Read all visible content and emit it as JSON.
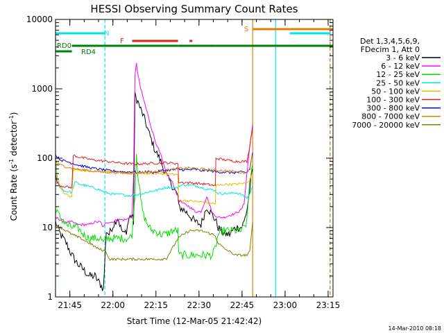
{
  "chart_data": {
    "type": "line",
    "title": "HESSI Observing Summary Count Rates",
    "xlabel": "Start Time (12-Mar-05 21:42:42)",
    "ylabel_parts": [
      "Count Rate (s",
      "-1",
      " detector",
      "-1",
      ")"
    ],
    "yscale": "log",
    "ylim": [
      1,
      10000
    ],
    "xlim_min": [
      -2.7,
      94
    ],
    "x_ticks": [
      {
        "v": 2.3,
        "label": "21:45"
      },
      {
        "v": 17.3,
        "label": "22:00"
      },
      {
        "v": 32.3,
        "label": "22:15"
      },
      {
        "v": 47.3,
        "label": "22:30"
      },
      {
        "v": 62.3,
        "label": "22:45"
      },
      {
        "v": 77.3,
        "label": "23:00"
      },
      {
        "v": 92.3,
        "label": "23:15"
      }
    ],
    "y_ticks": [
      {
        "v": 1,
        "label": "1"
      },
      {
        "v": 10,
        "label": "10"
      },
      {
        "v": 100,
        "label": "100"
      },
      {
        "v": 1000,
        "label": "1000"
      },
      {
        "v": 10000,
        "label": "10000"
      }
    ],
    "timestamp": "14-Mar-2010 08:18",
    "legend_header": [
      "Det 1,3,4,5,6,9,",
      "FDecim 1, Att 0"
    ],
    "flags": {
      "N": {
        "label": "N",
        "color": "#00e5e5",
        "segments": [
          [
            -2.7,
            14.5
          ],
          [
            79,
            93
          ]
        ]
      },
      "F": {
        "label": "F",
        "color": "#e02020",
        "segments": [
          [
            24,
            40
          ],
          [
            44,
            45
          ]
        ]
      },
      "S": {
        "label": "S",
        "color": "#e08000",
        "segments": [
          [
            66,
            94
          ]
        ]
      },
      "RD0": {
        "label": "RD0",
        "color": "#008000",
        "segments": [
          [
            3,
            40
          ],
          [
            40,
            53
          ],
          [
            53,
            94
          ]
        ]
      },
      "RD4": {
        "label": "RD4",
        "color": "#008000",
        "segments": [
          [
            -2.7,
            3
          ]
        ]
      }
    },
    "vlines": [
      {
        "x": -2.7,
        "color": "#00e5e5",
        "style": "solid"
      },
      {
        "x": 14.5,
        "color": "#00e5e5",
        "style": "dashed"
      },
      {
        "x": 66,
        "color": "#e08000",
        "style": "solid"
      },
      {
        "x": 74,
        "color": "#00e5e5",
        "style": "solid"
      },
      {
        "x": 93,
        "color": "#00e5e5",
        "style": "dashed"
      },
      {
        "x": 93,
        "color": "#e08000",
        "style": "dashed"
      }
    ],
    "series": [
      {
        "name": "3 - 6 keV",
        "color": "#000000",
        "x": [
          -2.7,
          -1,
          1,
          3,
          5,
          7,
          9,
          11,
          13,
          14,
          15,
          16,
          17,
          18,
          19,
          20,
          21,
          22,
          23,
          24,
          24.5,
          25,
          26,
          27,
          28,
          29,
          30,
          31,
          32,
          33,
          34,
          35,
          36,
          38,
          40,
          40.2,
          42,
          44,
          46,
          48,
          50,
          52,
          53,
          54,
          56,
          58,
          60,
          62,
          63,
          64,
          65,
          66
        ],
        "y": [
          12,
          8,
          6,
          4,
          3,
          2.5,
          2,
          2,
          1.5,
          1.3,
          9,
          8,
          10,
          12,
          14,
          10,
          8,
          9,
          14,
          15,
          12,
          800,
          650,
          500,
          400,
          300,
          220,
          170,
          130,
          110,
          90,
          70,
          55,
          40,
          28,
          20,
          18,
          15,
          12,
          11,
          20,
          15,
          13,
          10,
          8,
          8,
          10,
          10,
          12,
          18,
          35,
          70
        ]
      },
      {
        "name": "6 - 12 keV",
        "color": "#ff00ff",
        "x": [
          -2.7,
          -1,
          1,
          3,
          5,
          7,
          9,
          11,
          13,
          14,
          15,
          17,
          19,
          21,
          22,
          23,
          24,
          24.5,
          25,
          25.5,
          26,
          27,
          28,
          29,
          30,
          31,
          32,
          33,
          34,
          35,
          36,
          38,
          40,
          40.2,
          42,
          44,
          46,
          48,
          50,
          52,
          53,
          54,
          56,
          58,
          60,
          62,
          63,
          64,
          65,
          66
        ],
        "y": [
          14,
          13,
          12,
          12,
          11,
          11,
          11,
          12,
          12,
          10,
          12,
          12,
          13,
          13,
          13,
          14,
          15,
          60,
          1500,
          2400,
          1600,
          1000,
          700,
          500,
          350,
          250,
          180,
          140,
          110,
          80,
          60,
          45,
          28,
          25,
          22,
          20,
          17,
          17,
          28,
          16,
          15,
          14,
          14,
          15,
          16,
          18,
          22,
          60,
          150,
          300
        ]
      },
      {
        "name": "12 - 25 keV",
        "color": "#00e000",
        "x": [
          -2.7,
          -1,
          1,
          3,
          5,
          7,
          9,
          11,
          13,
          14,
          15,
          17,
          19,
          21,
          22,
          23,
          24,
          24.5,
          25,
          25.5,
          26,
          27,
          28,
          29,
          30,
          31,
          32,
          34,
          36,
          38,
          40,
          40.2,
          42,
          44,
          46,
          48,
          50,
          52,
          53,
          54,
          56,
          58,
          60,
          62,
          63,
          64,
          65,
          66
        ],
        "y": [
          18,
          14,
          11,
          10,
          10,
          8,
          7,
          7,
          7,
          6,
          7,
          7,
          7,
          7,
          7,
          7,
          8,
          15,
          30,
          120,
          60,
          25,
          15,
          12,
          10,
          9,
          9,
          8,
          8,
          9,
          9,
          4,
          4,
          4,
          4,
          4,
          4,
          4,
          5,
          8,
          9,
          9,
          9,
          9,
          10,
          12,
          50,
          80
        ]
      },
      {
        "name": "25 - 50 keV",
        "color": "#00e5e5",
        "x": [
          -2.7,
          -2.2,
          -1.5,
          0,
          1,
          2,
          3,
          4,
          6,
          8,
          10,
          12,
          14,
          16,
          18,
          20,
          22,
          24,
          26,
          28,
          30,
          32,
          34,
          36,
          38,
          40,
          40.2,
          42,
          44,
          46,
          48,
          50,
          52,
          53,
          54,
          56,
          58,
          60,
          62,
          63,
          64,
          65,
          66
        ],
        "y": [
          100,
          50,
          40,
          35,
          33,
          33,
          32,
          45,
          42,
          40,
          38,
          36,
          33,
          31,
          30,
          30,
          29,
          29,
          30,
          31,
          33,
          34,
          36,
          38,
          38,
          37,
          40,
          41,
          41,
          40,
          38,
          36,
          35,
          34,
          31,
          31,
          31,
          32,
          30,
          28,
          27,
          30,
          40
        ]
      },
      {
        "name": "50 - 100 keV",
        "color": "#e0c000",
        "x": [
          -2.7,
          -2.2,
          -1,
          1,
          2,
          3,
          3.5,
          5,
          10,
          15,
          20,
          25,
          30,
          35,
          40,
          40.2,
          45,
          50,
          53,
          53.2,
          56,
          60,
          64,
          65,
          66
        ],
        "y": [
          120,
          60,
          36,
          30,
          28,
          28,
          70,
          68,
          66,
          64,
          62,
          60,
          60,
          60,
          58,
          25,
          24,
          23,
          22,
          40,
          42,
          42,
          44,
          50,
          60
        ]
      },
      {
        "name": "100 - 300 keV",
        "color": "#e02020",
        "x": [
          -2.7,
          -2.2,
          -1,
          1,
          2,
          3,
          3.5,
          5,
          10,
          15,
          20,
          25,
          30,
          35,
          40,
          40.2,
          45,
          50,
          53,
          53.2,
          56,
          60,
          64,
          65,
          66
        ],
        "y": [
          60,
          45,
          40,
          39,
          38,
          38,
          110,
          105,
          95,
          90,
          85,
          82,
          84,
          86,
          84,
          45,
          44,
          42,
          40,
          100,
          95,
          90,
          90,
          150,
          290
        ]
      },
      {
        "name": "300 - 800 keV",
        "color": "#0000e0",
        "x": [
          -2.7,
          -1,
          1,
          3,
          5,
          8,
          10,
          12,
          14,
          16,
          18,
          20,
          22,
          24,
          26,
          28,
          30,
          32,
          34,
          36,
          38,
          40,
          42,
          44,
          46,
          48,
          50,
          52,
          54,
          56,
          58,
          60,
          62,
          64,
          65,
          66
        ],
        "y": [
          110,
          95,
          90,
          85,
          80,
          75,
          72,
          70,
          68,
          66,
          65,
          64,
          63,
          64,
          62,
          63,
          64,
          62,
          66,
          67,
          68,
          69,
          68,
          68,
          69,
          66,
          67,
          65,
          63,
          63,
          62,
          62,
          63,
          62,
          70,
          120
        ]
      },
      {
        "name": "800 - 7000 keV",
        "color": "#e08000",
        "x": [
          -2.7,
          -1,
          1,
          3,
          6,
          9,
          12,
          15,
          18,
          21,
          24,
          27,
          30,
          33,
          36,
          39,
          42,
          45,
          48,
          51,
          54,
          56,
          58,
          60,
          62,
          64,
          65,
          66
        ],
        "y": [
          90,
          80,
          75,
          72,
          68,
          66,
          64,
          63,
          62,
          61,
          61,
          62,
          63,
          64,
          66,
          70,
          72,
          72,
          70,
          68,
          67,
          66,
          65,
          64,
          62,
          62,
          75,
          110
        ]
      },
      {
        "name": "7000 - 20000 keV",
        "color": "#808000",
        "x": [
          -2.7,
          -1,
          1,
          3,
          6,
          9,
          12,
          15,
          16,
          18,
          22,
          26,
          30,
          34,
          36,
          38,
          40,
          42,
          44,
          46,
          48,
          50,
          52,
          53,
          54,
          56,
          58,
          60,
          62,
          64,
          65,
          66
        ],
        "y": [
          11,
          10,
          9,
          8,
          7,
          6,
          5,
          4.5,
          3.5,
          3.5,
          3.5,
          3.5,
          3.5,
          3.5,
          3.6,
          5,
          7,
          8,
          9,
          9,
          9,
          8.5,
          8,
          7.5,
          6,
          5,
          4.5,
          4,
          4,
          4,
          4.5,
          12
        ]
      }
    ]
  }
}
